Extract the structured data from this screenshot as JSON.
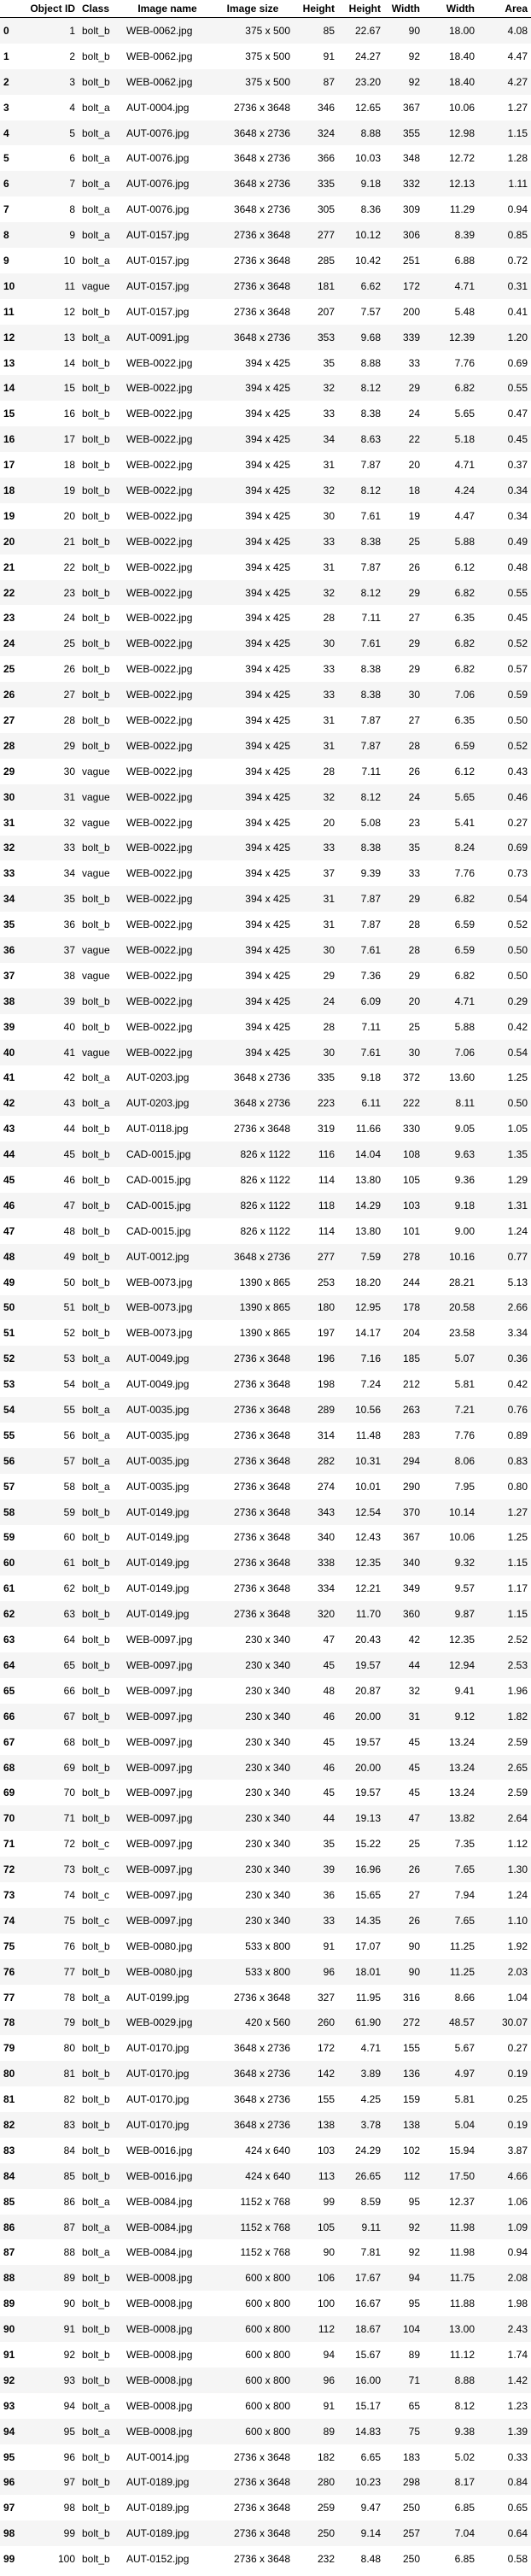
{
  "columns": [
    "",
    "Object ID",
    "Class",
    "Image name",
    "Image size",
    "Height",
    "Height",
    "Width",
    "Width",
    "Area"
  ],
  "rows": [
    [
      "0",
      "1",
      "bolt_b",
      "WEB-0062.jpg",
      "375 x 500",
      "85",
      "22.67",
      "90",
      "18.00",
      "4.08"
    ],
    [
      "1",
      "2",
      "bolt_b",
      "WEB-0062.jpg",
      "375 x 500",
      "91",
      "24.27",
      "92",
      "18.40",
      "4.47"
    ],
    [
      "2",
      "3",
      "bolt_b",
      "WEB-0062.jpg",
      "375 x 500",
      "87",
      "23.20",
      "92",
      "18.40",
      "4.27"
    ],
    [
      "3",
      "4",
      "bolt_a",
      "AUT-0004.jpg",
      "2736 x 3648",
      "346",
      "12.65",
      "367",
      "10.06",
      "1.27"
    ],
    [
      "4",
      "5",
      "bolt_a",
      "AUT-0076.jpg",
      "3648 x 2736",
      "324",
      "8.88",
      "355",
      "12.98",
      "1.15"
    ],
    [
      "5",
      "6",
      "bolt_a",
      "AUT-0076.jpg",
      "3648 x 2736",
      "366",
      "10.03",
      "348",
      "12.72",
      "1.28"
    ],
    [
      "6",
      "7",
      "bolt_a",
      "AUT-0076.jpg",
      "3648 x 2736",
      "335",
      "9.18",
      "332",
      "12.13",
      "1.11"
    ],
    [
      "7",
      "8",
      "bolt_a",
      "AUT-0076.jpg",
      "3648 x 2736",
      "305",
      "8.36",
      "309",
      "11.29",
      "0.94"
    ],
    [
      "8",
      "9",
      "bolt_a",
      "AUT-0157.jpg",
      "2736 x 3648",
      "277",
      "10.12",
      "306",
      "8.39",
      "0.85"
    ],
    [
      "9",
      "10",
      "bolt_a",
      "AUT-0157.jpg",
      "2736 x 3648",
      "285",
      "10.42",
      "251",
      "6.88",
      "0.72"
    ],
    [
      "10",
      "11",
      "vague",
      "AUT-0157.jpg",
      "2736 x 3648",
      "181",
      "6.62",
      "172",
      "4.71",
      "0.31"
    ],
    [
      "11",
      "12",
      "bolt_b",
      "AUT-0157.jpg",
      "2736 x 3648",
      "207",
      "7.57",
      "200",
      "5.48",
      "0.41"
    ],
    [
      "12",
      "13",
      "bolt_a",
      "AUT-0091.jpg",
      "3648 x 2736",
      "353",
      "9.68",
      "339",
      "12.39",
      "1.20"
    ],
    [
      "13",
      "14",
      "bolt_b",
      "WEB-0022.jpg",
      "394 x 425",
      "35",
      "8.88",
      "33",
      "7.76",
      "0.69"
    ],
    [
      "14",
      "15",
      "bolt_b",
      "WEB-0022.jpg",
      "394 x 425",
      "32",
      "8.12",
      "29",
      "6.82",
      "0.55"
    ],
    [
      "15",
      "16",
      "bolt_b",
      "WEB-0022.jpg",
      "394 x 425",
      "33",
      "8.38",
      "24",
      "5.65",
      "0.47"
    ],
    [
      "16",
      "17",
      "bolt_b",
      "WEB-0022.jpg",
      "394 x 425",
      "34",
      "8.63",
      "22",
      "5.18",
      "0.45"
    ],
    [
      "17",
      "18",
      "bolt_b",
      "WEB-0022.jpg",
      "394 x 425",
      "31",
      "7.87",
      "20",
      "4.71",
      "0.37"
    ],
    [
      "18",
      "19",
      "bolt_b",
      "WEB-0022.jpg",
      "394 x 425",
      "32",
      "8.12",
      "18",
      "4.24",
      "0.34"
    ],
    [
      "19",
      "20",
      "bolt_b",
      "WEB-0022.jpg",
      "394 x 425",
      "30",
      "7.61",
      "19",
      "4.47",
      "0.34"
    ],
    [
      "20",
      "21",
      "bolt_b",
      "WEB-0022.jpg",
      "394 x 425",
      "33",
      "8.38",
      "25",
      "5.88",
      "0.49"
    ],
    [
      "21",
      "22",
      "bolt_b",
      "WEB-0022.jpg",
      "394 x 425",
      "31",
      "7.87",
      "26",
      "6.12",
      "0.48"
    ],
    [
      "22",
      "23",
      "bolt_b",
      "WEB-0022.jpg",
      "394 x 425",
      "32",
      "8.12",
      "29",
      "6.82",
      "0.55"
    ],
    [
      "23",
      "24",
      "bolt_b",
      "WEB-0022.jpg",
      "394 x 425",
      "28",
      "7.11",
      "27",
      "6.35",
      "0.45"
    ],
    [
      "24",
      "25",
      "bolt_b",
      "WEB-0022.jpg",
      "394 x 425",
      "30",
      "7.61",
      "29",
      "6.82",
      "0.52"
    ],
    [
      "25",
      "26",
      "bolt_b",
      "WEB-0022.jpg",
      "394 x 425",
      "33",
      "8.38",
      "29",
      "6.82",
      "0.57"
    ],
    [
      "26",
      "27",
      "bolt_b",
      "WEB-0022.jpg",
      "394 x 425",
      "33",
      "8.38",
      "30",
      "7.06",
      "0.59"
    ],
    [
      "27",
      "28",
      "bolt_b",
      "WEB-0022.jpg",
      "394 x 425",
      "31",
      "7.87",
      "27",
      "6.35",
      "0.50"
    ],
    [
      "28",
      "29",
      "bolt_b",
      "WEB-0022.jpg",
      "394 x 425",
      "31",
      "7.87",
      "28",
      "6.59",
      "0.52"
    ],
    [
      "29",
      "30",
      "vague",
      "WEB-0022.jpg",
      "394 x 425",
      "28",
      "7.11",
      "26",
      "6.12",
      "0.43"
    ],
    [
      "30",
      "31",
      "vague",
      "WEB-0022.jpg",
      "394 x 425",
      "32",
      "8.12",
      "24",
      "5.65",
      "0.46"
    ],
    [
      "31",
      "32",
      "vague",
      "WEB-0022.jpg",
      "394 x 425",
      "20",
      "5.08",
      "23",
      "5.41",
      "0.27"
    ],
    [
      "32",
      "33",
      "bolt_b",
      "WEB-0022.jpg",
      "394 x 425",
      "33",
      "8.38",
      "35",
      "8.24",
      "0.69"
    ],
    [
      "33",
      "34",
      "vague",
      "WEB-0022.jpg",
      "394 x 425",
      "37",
      "9.39",
      "33",
      "7.76",
      "0.73"
    ],
    [
      "34",
      "35",
      "bolt_b",
      "WEB-0022.jpg",
      "394 x 425",
      "31",
      "7.87",
      "29",
      "6.82",
      "0.54"
    ],
    [
      "35",
      "36",
      "bolt_b",
      "WEB-0022.jpg",
      "394 x 425",
      "31",
      "7.87",
      "28",
      "6.59",
      "0.52"
    ],
    [
      "36",
      "37",
      "vague",
      "WEB-0022.jpg",
      "394 x 425",
      "30",
      "7.61",
      "28",
      "6.59",
      "0.50"
    ],
    [
      "37",
      "38",
      "vague",
      "WEB-0022.jpg",
      "394 x 425",
      "29",
      "7.36",
      "29",
      "6.82",
      "0.50"
    ],
    [
      "38",
      "39",
      "bolt_b",
      "WEB-0022.jpg",
      "394 x 425",
      "24",
      "6.09",
      "20",
      "4.71",
      "0.29"
    ],
    [
      "39",
      "40",
      "bolt_b",
      "WEB-0022.jpg",
      "394 x 425",
      "28",
      "7.11",
      "25",
      "5.88",
      "0.42"
    ],
    [
      "40",
      "41",
      "vague",
      "WEB-0022.jpg",
      "394 x 425",
      "30",
      "7.61",
      "30",
      "7.06",
      "0.54"
    ],
    [
      "41",
      "42",
      "bolt_a",
      "AUT-0203.jpg",
      "3648 x 2736",
      "335",
      "9.18",
      "372",
      "13.60",
      "1.25"
    ],
    [
      "42",
      "43",
      "bolt_a",
      "AUT-0203.jpg",
      "3648 x 2736",
      "223",
      "6.11",
      "222",
      "8.11",
      "0.50"
    ],
    [
      "43",
      "44",
      "bolt_b",
      "AUT-0118.jpg",
      "2736 x 3648",
      "319",
      "11.66",
      "330",
      "9.05",
      "1.05"
    ],
    [
      "44",
      "45",
      "bolt_b",
      "CAD-0015.jpg",
      "826 x 1122",
      "116",
      "14.04",
      "108",
      "9.63",
      "1.35"
    ],
    [
      "45",
      "46",
      "bolt_b",
      "CAD-0015.jpg",
      "826 x 1122",
      "114",
      "13.80",
      "105",
      "9.36",
      "1.29"
    ],
    [
      "46",
      "47",
      "bolt_b",
      "CAD-0015.jpg",
      "826 x 1122",
      "118",
      "14.29",
      "103",
      "9.18",
      "1.31"
    ],
    [
      "47",
      "48",
      "bolt_b",
      "CAD-0015.jpg",
      "826 x 1122",
      "114",
      "13.80",
      "101",
      "9.00",
      "1.24"
    ],
    [
      "48",
      "49",
      "bolt_b",
      "AUT-0012.jpg",
      "3648 x 2736",
      "277",
      "7.59",
      "278",
      "10.16",
      "0.77"
    ],
    [
      "49",
      "50",
      "bolt_b",
      "WEB-0073.jpg",
      "1390 x 865",
      "253",
      "18.20",
      "244",
      "28.21",
      "5.13"
    ],
    [
      "50",
      "51",
      "bolt_b",
      "WEB-0073.jpg",
      "1390 x 865",
      "180",
      "12.95",
      "178",
      "20.58",
      "2.66"
    ],
    [
      "51",
      "52",
      "bolt_b",
      "WEB-0073.jpg",
      "1390 x 865",
      "197",
      "14.17",
      "204",
      "23.58",
      "3.34"
    ],
    [
      "52",
      "53",
      "bolt_a",
      "AUT-0049.jpg",
      "2736 x 3648",
      "196",
      "7.16",
      "185",
      "5.07",
      "0.36"
    ],
    [
      "53",
      "54",
      "bolt_a",
      "AUT-0049.jpg",
      "2736 x 3648",
      "198",
      "7.24",
      "212",
      "5.81",
      "0.42"
    ],
    [
      "54",
      "55",
      "bolt_a",
      "AUT-0035.jpg",
      "2736 x 3648",
      "289",
      "10.56",
      "263",
      "7.21",
      "0.76"
    ],
    [
      "55",
      "56",
      "bolt_a",
      "AUT-0035.jpg",
      "2736 x 3648",
      "314",
      "11.48",
      "283",
      "7.76",
      "0.89"
    ],
    [
      "56",
      "57",
      "bolt_a",
      "AUT-0035.jpg",
      "2736 x 3648",
      "282",
      "10.31",
      "294",
      "8.06",
      "0.83"
    ],
    [
      "57",
      "58",
      "bolt_a",
      "AUT-0035.jpg",
      "2736 x 3648",
      "274",
      "10.01",
      "290",
      "7.95",
      "0.80"
    ],
    [
      "58",
      "59",
      "bolt_b",
      "AUT-0149.jpg",
      "2736 x 3648",
      "343",
      "12.54",
      "370",
      "10.14",
      "1.27"
    ],
    [
      "59",
      "60",
      "bolt_b",
      "AUT-0149.jpg",
      "2736 x 3648",
      "340",
      "12.43",
      "367",
      "10.06",
      "1.25"
    ],
    [
      "60",
      "61",
      "bolt_b",
      "AUT-0149.jpg",
      "2736 x 3648",
      "338",
      "12.35",
      "340",
      "9.32",
      "1.15"
    ],
    [
      "61",
      "62",
      "bolt_b",
      "AUT-0149.jpg",
      "2736 x 3648",
      "334",
      "12.21",
      "349",
      "9.57",
      "1.17"
    ],
    [
      "62",
      "63",
      "bolt_b",
      "AUT-0149.jpg",
      "2736 x 3648",
      "320",
      "11.70",
      "360",
      "9.87",
      "1.15"
    ],
    [
      "63",
      "64",
      "bolt_b",
      "WEB-0097.jpg",
      "230 x 340",
      "47",
      "20.43",
      "42",
      "12.35",
      "2.52"
    ],
    [
      "64",
      "65",
      "bolt_b",
      "WEB-0097.jpg",
      "230 x 340",
      "45",
      "19.57",
      "44",
      "12.94",
      "2.53"
    ],
    [
      "65",
      "66",
      "bolt_b",
      "WEB-0097.jpg",
      "230 x 340",
      "48",
      "20.87",
      "32",
      "9.41",
      "1.96"
    ],
    [
      "66",
      "67",
      "bolt_b",
      "WEB-0097.jpg",
      "230 x 340",
      "46",
      "20.00",
      "31",
      "9.12",
      "1.82"
    ],
    [
      "67",
      "68",
      "bolt_b",
      "WEB-0097.jpg",
      "230 x 340",
      "45",
      "19.57",
      "45",
      "13.24",
      "2.59"
    ],
    [
      "68",
      "69",
      "bolt_b",
      "WEB-0097.jpg",
      "230 x 340",
      "46",
      "20.00",
      "45",
      "13.24",
      "2.65"
    ],
    [
      "69",
      "70",
      "bolt_b",
      "WEB-0097.jpg",
      "230 x 340",
      "45",
      "19.57",
      "45",
      "13.24",
      "2.59"
    ],
    [
      "70",
      "71",
      "bolt_b",
      "WEB-0097.jpg",
      "230 x 340",
      "44",
      "19.13",
      "47",
      "13.82",
      "2.64"
    ],
    [
      "71",
      "72",
      "bolt_c",
      "WEB-0097.jpg",
      "230 x 340",
      "35",
      "15.22",
      "25",
      "7.35",
      "1.12"
    ],
    [
      "72",
      "73",
      "bolt_c",
      "WEB-0097.jpg",
      "230 x 340",
      "39",
      "16.96",
      "26",
      "7.65",
      "1.30"
    ],
    [
      "73",
      "74",
      "bolt_c",
      "WEB-0097.jpg",
      "230 x 340",
      "36",
      "15.65",
      "27",
      "7.94",
      "1.24"
    ],
    [
      "74",
      "75",
      "bolt_c",
      "WEB-0097.jpg",
      "230 x 340",
      "33",
      "14.35",
      "26",
      "7.65",
      "1.10"
    ],
    [
      "75",
      "76",
      "bolt_b",
      "WEB-0080.jpg",
      "533 x 800",
      "91",
      "17.07",
      "90",
      "11.25",
      "1.92"
    ],
    [
      "76",
      "77",
      "bolt_b",
      "WEB-0080.jpg",
      "533 x 800",
      "96",
      "18.01",
      "90",
      "11.25",
      "2.03"
    ],
    [
      "77",
      "78",
      "bolt_a",
      "AUT-0199.jpg",
      "2736 x 3648",
      "327",
      "11.95",
      "316",
      "8.66",
      "1.04"
    ],
    [
      "78",
      "79",
      "bolt_b",
      "WEB-0029.jpg",
      "420 x 560",
      "260",
      "61.90",
      "272",
      "48.57",
      "30.07"
    ],
    [
      "79",
      "80",
      "bolt_b",
      "AUT-0170.jpg",
      "3648 x 2736",
      "172",
      "4.71",
      "155",
      "5.67",
      "0.27"
    ],
    [
      "80",
      "81",
      "bolt_b",
      "AUT-0170.jpg",
      "3648 x 2736",
      "142",
      "3.89",
      "136",
      "4.97",
      "0.19"
    ],
    [
      "81",
      "82",
      "bolt_b",
      "AUT-0170.jpg",
      "3648 x 2736",
      "155",
      "4.25",
      "159",
      "5.81",
      "0.25"
    ],
    [
      "82",
      "83",
      "bolt_b",
      "AUT-0170.jpg",
      "3648 x 2736",
      "138",
      "3.78",
      "138",
      "5.04",
      "0.19"
    ],
    [
      "83",
      "84",
      "bolt_b",
      "WEB-0016.jpg",
      "424 x 640",
      "103",
      "24.29",
      "102",
      "15.94",
      "3.87"
    ],
    [
      "84",
      "85",
      "bolt_b",
      "WEB-0016.jpg",
      "424 x 640",
      "113",
      "26.65",
      "112",
      "17.50",
      "4.66"
    ],
    [
      "85",
      "86",
      "bolt_a",
      "WEB-0084.jpg",
      "1152 x 768",
      "99",
      "8.59",
      "95",
      "12.37",
      "1.06"
    ],
    [
      "86",
      "87",
      "bolt_a",
      "WEB-0084.jpg",
      "1152 x 768",
      "105",
      "9.11",
      "92",
      "11.98",
      "1.09"
    ],
    [
      "87",
      "88",
      "bolt_a",
      "WEB-0084.jpg",
      "1152 x 768",
      "90",
      "7.81",
      "92",
      "11.98",
      "0.94"
    ],
    [
      "88",
      "89",
      "bolt_b",
      "WEB-0008.jpg",
      "600 x 800",
      "106",
      "17.67",
      "94",
      "11.75",
      "2.08"
    ],
    [
      "89",
      "90",
      "bolt_b",
      "WEB-0008.jpg",
      "600 x 800",
      "100",
      "16.67",
      "95",
      "11.88",
      "1.98"
    ],
    [
      "90",
      "91",
      "bolt_b",
      "WEB-0008.jpg",
      "600 x 800",
      "112",
      "18.67",
      "104",
      "13.00",
      "2.43"
    ],
    [
      "91",
      "92",
      "bolt_b",
      "WEB-0008.jpg",
      "600 x 800",
      "94",
      "15.67",
      "89",
      "11.12",
      "1.74"
    ],
    [
      "92",
      "93",
      "bolt_b",
      "WEB-0008.jpg",
      "600 x 800",
      "96",
      "16.00",
      "71",
      "8.88",
      "1.42"
    ],
    [
      "93",
      "94",
      "bolt_a",
      "WEB-0008.jpg",
      "600 x 800",
      "91",
      "15.17",
      "65",
      "8.12",
      "1.23"
    ],
    [
      "94",
      "95",
      "bolt_a",
      "WEB-0008.jpg",
      "600 x 800",
      "89",
      "14.83",
      "75",
      "9.38",
      "1.39"
    ],
    [
      "95",
      "96",
      "bolt_b",
      "AUT-0014.jpg",
      "2736 x 3648",
      "182",
      "6.65",
      "183",
      "5.02",
      "0.33"
    ],
    [
      "96",
      "97",
      "bolt_b",
      "AUT-0189.jpg",
      "2736 x 3648",
      "280",
      "10.23",
      "298",
      "8.17",
      "0.84"
    ],
    [
      "97",
      "98",
      "bolt_b",
      "AUT-0189.jpg",
      "2736 x 3648",
      "259",
      "9.47",
      "250",
      "6.85",
      "0.65"
    ],
    [
      "98",
      "99",
      "bolt_b",
      "AUT-0189.jpg",
      "2736 x 3648",
      "250",
      "9.14",
      "257",
      "7.04",
      "0.64"
    ],
    [
      "99",
      "100",
      "bolt_b",
      "AUT-0152.jpg",
      "2736 x 3648",
      "232",
      "8.48",
      "250",
      "6.85",
      "0.58"
    ]
  ]
}
